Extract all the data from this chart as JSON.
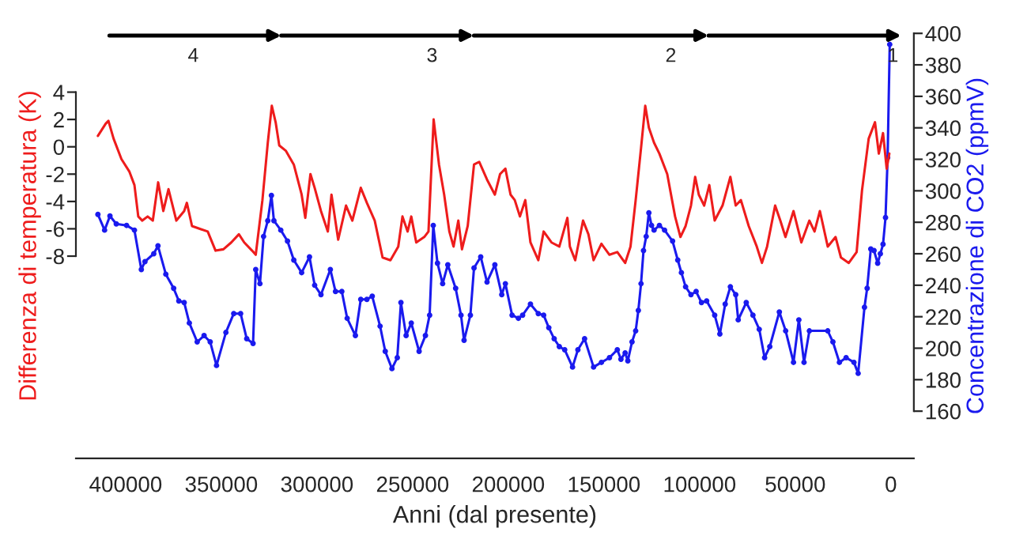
{
  "chart_data": {
    "type": "line",
    "xlabel": "Anni (dal presente)",
    "ylabel": "Differenza di temperatura (K)",
    "y2label": "Concentrazione di CO2 (ppmV)",
    "xlim": [
      426000,
      -12000
    ],
    "xticks": [
      400000,
      350000,
      300000,
      250000,
      200000,
      150000,
      100000,
      50000,
      0
    ],
    "ylim": [
      -22.8,
      8.3
    ],
    "yticks": [
      -8,
      -6,
      -4,
      -2,
      0,
      2,
      4
    ],
    "y2lim": [
      130,
      400
    ],
    "y2ticks": [
      160,
      180,
      200,
      220,
      240,
      260,
      280,
      300,
      320,
      340,
      360,
      380,
      400
    ],
    "grid": false,
    "legend": false,
    "series": [
      {
        "color": "#ee1c1c",
        "marker": "none",
        "x": [
          414500,
          410400,
          409000,
          406300,
          402200,
          398100,
          395400,
          393400,
          391300,
          388500,
          385800,
          383000,
          380300,
          377600,
          373500,
          369400,
          368000,
          365300,
          361200,
          357100,
          353000,
          348900,
          344800,
          340800,
          338000,
          333900,
          332000,
          328500,
          325700,
          323600,
          321600,
          319700,
          316200,
          312100,
          308000,
          306100,
          303400,
          301200,
          297900,
          294300,
          292400,
          288900,
          284800,
          281500,
          277100,
          273900,
          269800,
          265700,
          261600,
          257500,
          255300,
          252600,
          250700,
          248100,
          243900,
          241700,
          239000,
          236200,
          233500,
          230800,
          228600,
          226100,
          224200,
          221200,
          217900,
          215200,
          211100,
          207000,
          204300,
          201500,
          198800,
          196600,
          193900,
          191100,
          188400,
          184300,
          181500,
          177400,
          173300,
          169100,
          167800,
          165000,
          160900,
          158100,
          155400,
          151300,
          147100,
          143000,
          138900,
          136100,
          133400,
          130600,
          128400,
          126500,
          123800,
          121000,
          116900,
          112800,
          110000,
          107300,
          104500,
          102300,
          100400,
          97600,
          94900,
          92100,
          88000,
          83900,
          81100,
          78400,
          74300,
          70100,
          67400,
          64700,
          60500,
          57800,
          55100,
          50900,
          46800,
          42600,
          39900,
          37100,
          33000,
          28900,
          26100,
          22000,
          17900,
          15100,
          11600,
          8300,
          6300,
          4100,
          2200,
          800
        ],
        "values": [
          0.8,
          1.7,
          1.9,
          0.6,
          -0.9,
          -1.8,
          -2.8,
          -5.1,
          -5.4,
          -5.1,
          -5.4,
          -2.6,
          -4.7,
          -3.1,
          -5.4,
          -4.7,
          -4.1,
          -5.8,
          -6.0,
          -6.2,
          -7.6,
          -7.5,
          -7.0,
          -6.4,
          -7.0,
          -7.6,
          -7.9,
          -3.9,
          0.3,
          3.0,
          1.8,
          0.1,
          -0.3,
          -1.3,
          -3.5,
          -5.2,
          -2.0,
          -3.0,
          -4.7,
          -6.2,
          -3.5,
          -6.8,
          -4.3,
          -5.4,
          -3.0,
          -4.1,
          -5.4,
          -8.1,
          -8.3,
          -7.3,
          -5.1,
          -6.2,
          -5.1,
          -7.0,
          -6.6,
          -6.2,
          2.0,
          -1.3,
          -3.5,
          -6.2,
          -7.3,
          -5.4,
          -7.5,
          -5.8,
          -1.3,
          -1.1,
          -2.4,
          -3.5,
          -2.0,
          -1.6,
          -3.5,
          -3.9,
          -5.1,
          -3.9,
          -7.0,
          -8.3,
          -6.2,
          -7.0,
          -7.3,
          -5.2,
          -7.3,
          -8.3,
          -5.4,
          -6.4,
          -8.3,
          -7.1,
          -7.9,
          -7.7,
          -8.5,
          -7.3,
          -3.9,
          -0.1,
          3.0,
          1.4,
          0.3,
          -0.5,
          -2.0,
          -5.1,
          -6.6,
          -5.8,
          -4.3,
          -2.2,
          -3.5,
          -4.3,
          -2.8,
          -5.4,
          -4.3,
          -2.2,
          -4.3,
          -3.9,
          -5.8,
          -7.3,
          -8.5,
          -7.3,
          -4.3,
          -5.4,
          -6.6,
          -4.7,
          -7.0,
          -5.4,
          -6.2,
          -4.7,
          -7.3,
          -6.6,
          -8.1,
          -8.5,
          -7.7,
          -3.2,
          0.6,
          1.8,
          -0.5,
          1.0,
          -1.6,
          -0.5
        ]
      },
      {
        "color": "#1a1aee",
        "marker": "circle",
        "axis": "y2",
        "x": [
          414500,
          411000,
          408200,
          404900,
          399500,
          395400,
          391800,
          389900,
          385300,
          383100,
          379000,
          374900,
          372200,
          369400,
          366700,
          362600,
          359000,
          355800,
          352500,
          347600,
          343500,
          339900,
          336700,
          333400,
          332000,
          329800,
          327900,
          325700,
          323800,
          322500,
          318900,
          315400,
          312100,
          308000,
          303900,
          301200,
          297900,
          293000,
          290300,
          287000,
          284200,
          279900,
          277100,
          273900,
          271100,
          267000,
          264300,
          260800,
          258000,
          256100,
          253400,
          250700,
          246600,
          243300,
          241100,
          239200,
          237000,
          234300,
          231600,
          227500,
          224700,
          223100,
          219800,
          217900,
          214400,
          211100,
          207000,
          203400,
          201500,
          198000,
          194700,
          192500,
          188400,
          184300,
          181500,
          178800,
          176000,
          173300,
          170500,
          166400,
          163600,
          160100,
          155400,
          151300,
          147100,
          143000,
          141100,
          138900,
          137500,
          135300,
          133400,
          132000,
          130600,
          129300,
          127900,
          126500,
          125100,
          123800,
          121000,
          118300,
          114100,
          111400,
          109500,
          107300,
          104500,
          101800,
          99000,
          96300,
          92100,
          89400,
          86600,
          83900,
          81100,
          79800,
          75600,
          72100,
          68800,
          66000,
          63300,
          58300,
          55000,
          50900,
          48100,
          45400,
          42600,
          33000,
          30300,
          26900,
          23400,
          19300,
          17100,
          13800,
          12400,
          10500,
          8800,
          6900,
          5500,
          4100,
          2800,
          1700,
          600
        ],
        "values": [
          285,
          275,
          284,
          279,
          278,
          275,
          250,
          255,
          260,
          265,
          247,
          238,
          230,
          229,
          216,
          204,
          208,
          204,
          189,
          210,
          222,
          222,
          206,
          203,
          250,
          241,
          271,
          281,
          297,
          281,
          275,
          268,
          256,
          248,
          258,
          240,
          234,
          250,
          236,
          236,
          219,
          208,
          231,
          231,
          233,
          214,
          198,
          187,
          194,
          229,
          208,
          216,
          198,
          208,
          221,
          278,
          254,
          241,
          253,
          238,
          221,
          205,
          221,
          251,
          258,
          242,
          253,
          234,
          241,
          221,
          219,
          221,
          228,
          222,
          221,
          213,
          206,
          201,
          199,
          188,
          199,
          206,
          188,
          191,
          194,
          199,
          193,
          197,
          192,
          204,
          211,
          224,
          241,
          262,
          271,
          286,
          278,
          275,
          278,
          275,
          268,
          256,
          248,
          239,
          234,
          236,
          229,
          230,
          221,
          209,
          228,
          239,
          234,
          218,
          229,
          221,
          212,
          194,
          201,
          223,
          211,
          191,
          218,
          191,
          211,
          211,
          204,
          191,
          194,
          191,
          184,
          226,
          238,
          263,
          262,
          254,
          260,
          266,
          283,
          321,
          393
        ]
      }
    ],
    "annotations": [
      "4",
      "3",
      "2",
      "1"
    ]
  }
}
